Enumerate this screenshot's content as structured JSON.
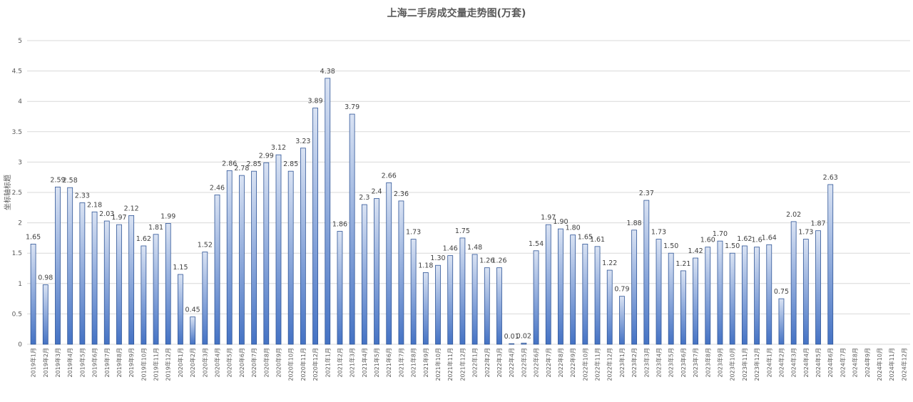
{
  "chart_data": {
    "type": "bar",
    "title": "上海二手房成交量走势图(万套)",
    "ylabel": "坐标轴标题",
    "xlabel": "",
    "ylim": [
      0,
      5
    ],
    "yticks": [
      "0",
      "0.5",
      "1",
      "1.5",
      "2",
      "2.5",
      "3",
      "3.5",
      "4",
      "4.5",
      "5"
    ],
    "grid": true,
    "bar_gradient": [
      "#dae3f3",
      "#4472c4"
    ],
    "categories": [
      "2019年1月",
      "2019年2月",
      "2019年3月",
      "2019年4月",
      "2019年5月",
      "2019年6月",
      "2019年7月",
      "2019年8月",
      "2019年9月",
      "2019年10月",
      "2019年11月",
      "2019年12月",
      "2020年1月",
      "2020年2月",
      "2020年3月",
      "2020年4月",
      "2020年5月",
      "2020年6月",
      "2020年7月",
      "2020年8月",
      "2020年9月",
      "2020年10月",
      "2020年11月",
      "2020年12月",
      "2021年1月",
      "2021年2月",
      "2021年3月",
      "2021年4月",
      "2021年5月",
      "2021年6月",
      "2021年7月",
      "2021年8月",
      "2021年9月",
      "2021年10月",
      "2021年11月",
      "2021年12月",
      "2022年1月",
      "2022年2月",
      "2022年3月",
      "2022年4月",
      "2022年5月",
      "2022年6月",
      "2022年7月",
      "2022年8月",
      "2022年9月",
      "2022年10月",
      "2022年11月",
      "2022年12月",
      "2023年1月",
      "2023年2月",
      "2023年3月",
      "2023年4月",
      "2023年5月",
      "2023年6月",
      "2023年7月",
      "2023年8月",
      "2023年9月",
      "2023年10月",
      "2023年11月",
      "2023年12月",
      "2024年1月",
      "2024年2月",
      "2024年3月",
      "2024年4月",
      "2024年5月",
      "2024年6月",
      "2024年7月",
      "2024年8月",
      "2024年9月",
      "2024年10月",
      "2024年11月",
      "2024年12月"
    ],
    "values": [
      1.65,
      0.98,
      2.59,
      2.58,
      2.33,
      2.18,
      2.03,
      1.97,
      2.12,
      1.62,
      1.81,
      1.99,
      1.15,
      0.45,
      1.52,
      2.46,
      2.86,
      2.78,
      2.85,
      2.99,
      3.12,
      2.85,
      3.23,
      3.89,
      4.38,
      1.86,
      3.79,
      2.3,
      2.4,
      2.66,
      2.36,
      1.73,
      1.18,
      1.3,
      1.46,
      1.75,
      1.48,
      1.26,
      1.26,
      0.01,
      0.02,
      1.54,
      1.97,
      1.9,
      1.8,
      1.65,
      1.61,
      1.22,
      0.79,
      1.88,
      2.37,
      1.73,
      1.5,
      1.21,
      1.42,
      1.6,
      1.7,
      1.5,
      1.62,
      1.6,
      1.64,
      0.75,
      2.02,
      1.73,
      1.87,
      2.63,
      null,
      null,
      null,
      null,
      null,
      null
    ],
    "data_labels": [
      "1.65",
      "0.98",
      "2.59",
      "2.58",
      "2.33",
      "2.18",
      "2.03",
      "1.97",
      "2.12",
      "1.62",
      "1.81",
      "1.99",
      "1.15",
      "0.45",
      "1.52",
      "2.46",
      "2.86",
      "2.78",
      "2.85",
      "2.99",
      "3.12",
      "2.85",
      "3.23",
      "3.89",
      "4.38",
      "1.86",
      "3.79",
      "2.3",
      "2.4",
      "2.66",
      "2.36",
      "1.73",
      "1.18",
      "1.30",
      "1.46",
      "1.75",
      "1.48",
      "1.26",
      "1.26",
      "0.01",
      "0.02",
      "1.54",
      "1.97",
      "1.90",
      "1.80",
      "1.65",
      "1.61",
      "1.22",
      "0.79",
      "1.88",
      "2.37",
      "1.73",
      "1.50",
      "1.21",
      "1.42",
      "1.60",
      "1.70",
      "1.50",
      "1.62",
      "1.6",
      "1.64",
      "0.75",
      "2.02",
      "1.73",
      "1.87",
      "2.63",
      "",
      "",
      "",
      "",
      "",
      ""
    ]
  }
}
